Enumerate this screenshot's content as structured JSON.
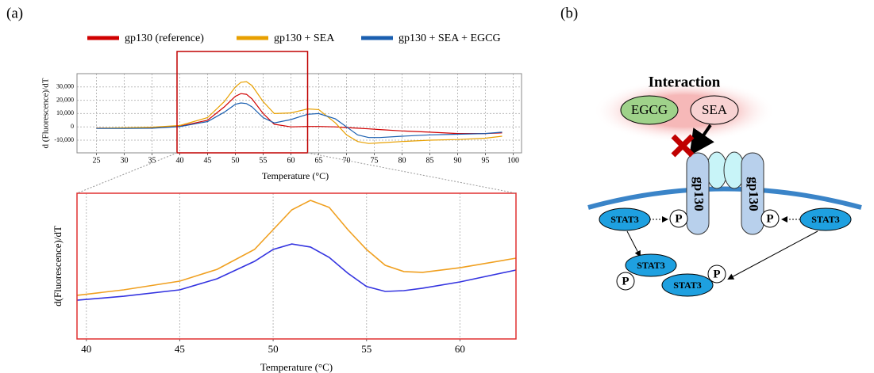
{
  "panels": [
    "(a)",
    "(b)"
  ],
  "chart_data": [
    {
      "type": "line",
      "xlabel": "Temperature (°C)",
      "ylabel": "d (Fluorescence)/dT",
      "x": [
        25,
        30,
        35,
        40,
        45,
        48,
        50,
        51,
        52,
        53,
        55,
        57,
        60,
        63,
        65,
        68,
        70,
        72,
        74,
        76,
        80,
        85,
        90,
        95,
        98
      ],
      "series": [
        {
          "name": "gp130 (reference)",
          "color": "#d00000",
          "values": [
            -1000,
            -800,
            -500,
            500,
            5000,
            15000,
            23000,
            25000,
            24500,
            21000,
            10000,
            2000,
            0,
            300,
            300,
            0,
            -500,
            -1000,
            -1500,
            -2000,
            -3000,
            -4000,
            -5000,
            -5000,
            -4500
          ]
        },
        {
          "name": "gp130 + SEA",
          "color": "#e8a000",
          "values": [
            -1000,
            -700,
            -200,
            1000,
            7000,
            19000,
            30000,
            33500,
            34000,
            31000,
            19000,
            10000,
            10500,
            13500,
            13000,
            3000,
            -6000,
            -11000,
            -12500,
            -12000,
            -11000,
            -10000,
            -9500,
            -8500,
            -7000
          ]
        },
        {
          "name": "gp130 + SEA + EGCG",
          "color": "#1a5fb0",
          "values": [
            -1200,
            -1200,
            -1000,
            200,
            4000,
            11000,
            17000,
            18000,
            17500,
            15000,
            7000,
            3000,
            5500,
            9500,
            10000,
            6000,
            0,
            -6000,
            -8000,
            -8000,
            -7000,
            -6000,
            -5500,
            -5000,
            -4000
          ]
        }
      ],
      "xlim": [
        21.5,
        101.5
      ],
      "xticks": [
        25,
        30,
        35,
        40,
        45,
        50,
        55,
        60,
        65,
        70,
        75,
        80,
        85,
        90,
        95,
        100
      ],
      "ylim": [
        -19500,
        40000
      ],
      "yticks": [
        {
          "value": -10000,
          "label": "-10,000"
        },
        0,
        {
          "value": 10000,
          "label": "10,000"
        },
        {
          "value": 20000,
          "label": "20,000"
        },
        {
          "value": 30000,
          "label": "30,000"
        }
      ],
      "grid": true,
      "legend": "top"
    },
    {
      "type": "line",
      "xlabel": "Temperature (°C)",
      "ylabel": "d(Fluorescence)/dT",
      "x": [
        39.5,
        42,
        45,
        47,
        49,
        50,
        51,
        52,
        53,
        54,
        55,
        56,
        57,
        58,
        60,
        63
      ],
      "series": [
        {
          "color": "#f0a020",
          "values": [
            -700,
            1300,
            4500,
            8800,
            16100,
            23350,
            30600,
            34100,
            31500,
            23350,
            16100,
            10300,
            8000,
            7700,
            9400,
            12900
          ]
        },
        {
          "color": "#3434e0",
          "values": [
            -2500,
            -1050,
            1300,
            5350,
            11750,
            16100,
            18100,
            17000,
            13200,
            7400,
            2500,
            700,
            1000,
            1900,
            4200,
            8550
          ]
        }
      ],
      "xlim": [
        39.5,
        63
      ],
      "xticks": [
        40,
        45,
        50,
        55,
        60
      ],
      "ylim": [
        -16700,
        36700
      ],
      "grid": true
    }
  ],
  "diagram": {
    "title": "Interaction",
    "ligands": [
      "EGCG",
      "SEA"
    ],
    "receptors": [
      "gp130",
      "gp130"
    ],
    "stat3": [
      "STAT3",
      "STAT3",
      "STAT3",
      "STAT3"
    ],
    "phospho": [
      "P",
      "P",
      "P",
      "P"
    ]
  }
}
